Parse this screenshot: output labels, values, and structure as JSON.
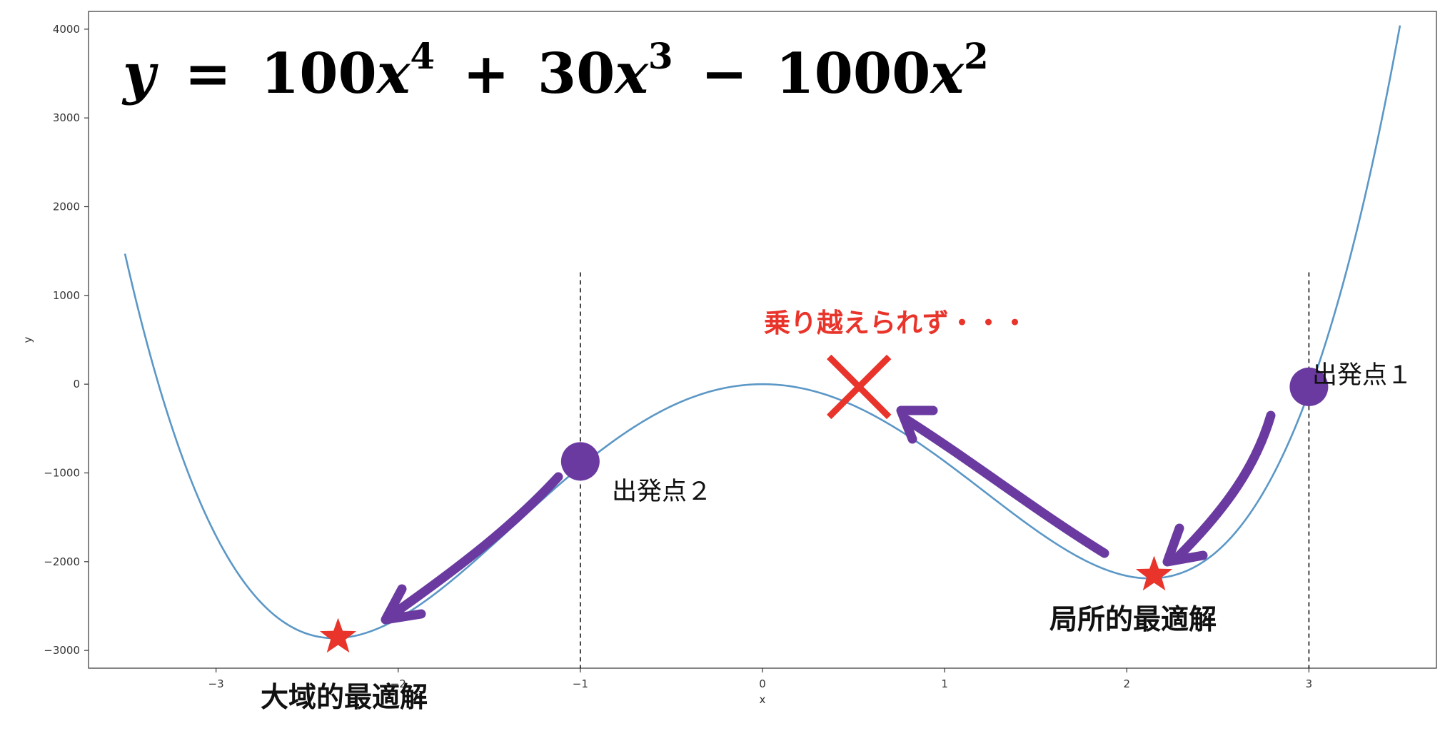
{
  "chart_data": {
    "type": "line",
    "title": "y = 100x^4 + 30x^3 − 1000x^2",
    "title_parts": {
      "lhs": "y",
      "eq": "=",
      "c1": "100",
      "x1": "x",
      "p1": "4",
      "plus": "+",
      "c2": "30",
      "x2": "x",
      "p2": "3",
      "minus": "−",
      "c3": "1000",
      "x3": "x",
      "p3": "2"
    },
    "xlabel": "x",
    "ylabel": "y",
    "xlim": [
      -3.7,
      3.7
    ],
    "ylim": [
      -3200,
      4200
    ],
    "x_ticks": [
      -3,
      -2,
      -1,
      0,
      1,
      2,
      3
    ],
    "x_tick_labels": [
      "−3",
      "−2",
      "−1",
      "0",
      "1",
      "2",
      "3"
    ],
    "y_ticks": [
      -3000,
      -2000,
      -1000,
      0,
      1000,
      2000,
      3000,
      4000
    ],
    "y_tick_labels": [
      "−3000",
      "−2000",
      "−1000",
      "0",
      "1000",
      "2000",
      "3000",
      "4000"
    ],
    "grid": false,
    "function": {
      "a4": 100,
      "a3": 30,
      "a2": -1000
    },
    "x_range": [
      -3.5,
      3.5
    ],
    "series": [
      {
        "color": "#5b97c6"
      }
    ],
    "vlines": [
      -1,
      3
    ],
    "points": {
      "start1": {
        "x": 3,
        "y": -30,
        "label": "出発点１"
      },
      "start2": {
        "x": -1,
        "y": -870,
        "label": "出発点２"
      },
      "global_min": {
        "x": -2.33,
        "y": -2850,
        "label": "大域的最適解"
      },
      "local_min": {
        "x": 2.15,
        "y": -2150,
        "label": "局所的最適解"
      },
      "fail": {
        "x": 0.53,
        "y": -30,
        "label": "乗り越えられず・・・"
      }
    },
    "colors": {
      "arrow": "#6a3aa0",
      "star": "#e8342a",
      "marker": "#6a3aa0",
      "fail_text": "#e8342a"
    }
  }
}
